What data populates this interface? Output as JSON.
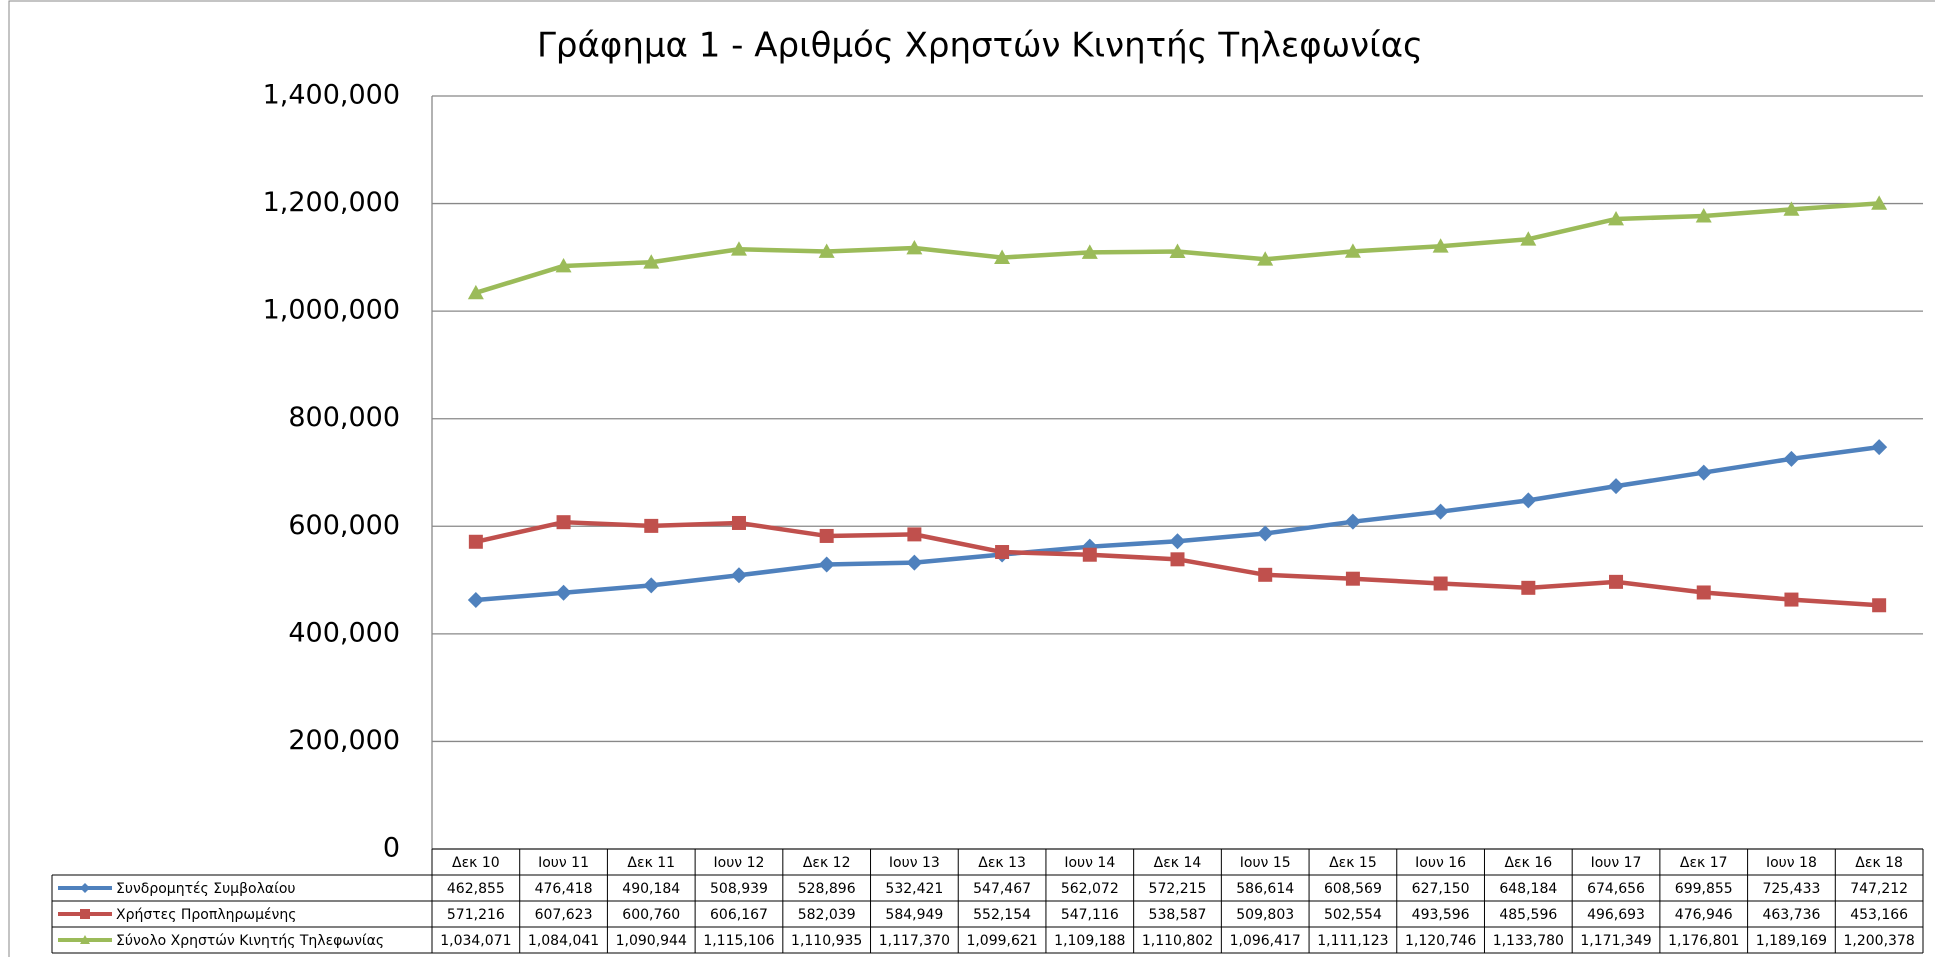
{
  "chart_data": {
    "type": "line",
    "title": "Γράφημα 1 - Αριθμός Χρηστών Κινητής Τηλεφωνίας",
    "categories": [
      "Δεκ 10",
      "Ιουν 11",
      "Δεκ 11",
      "Ιουν 12",
      "Δεκ 12",
      "Ιουν 13",
      "Δεκ 13",
      "Ιουν 14",
      "Δεκ 14",
      "Ιουν 15",
      "Δεκ 15",
      "Ιουν 16",
      "Δεκ 16",
      "Ιουν 17",
      "Δεκ 17",
      "Ιουν 18",
      "Δεκ 18"
    ],
    "series": [
      {
        "name": "Συνδρομητές Συμβολαίου",
        "color": "#4f81bd",
        "marker": "diamond",
        "values": [
          462855,
          476418,
          490184,
          508939,
          528896,
          532421,
          547467,
          562072,
          572215,
          586614,
          608569,
          627150,
          648184,
          674656,
          699855,
          725433,
          747212
        ],
        "value_labels": [
          "462,855",
          "476,418",
          "490,184",
          "508,939",
          "528,896",
          "532,421",
          "547,467",
          "562,072",
          "572,215",
          "586,614",
          "608,569",
          "627,150",
          "648,184",
          "674,656",
          "699,855",
          "725,433",
          "747,212"
        ]
      },
      {
        "name": "Χρήστες Προπληρωμένης",
        "color": "#c0504d",
        "marker": "square",
        "values": [
          571216,
          607623,
          600760,
          606167,
          582039,
          584949,
          552154,
          547116,
          538587,
          509803,
          502554,
          493596,
          485596,
          496693,
          476946,
          463736,
          453166
        ],
        "value_labels": [
          "571,216",
          "607,623",
          "600,760",
          "606,167",
          "582,039",
          "584,949",
          "552,154",
          "547,116",
          "538,587",
          "509,803",
          "502,554",
          "493,596",
          "485,596",
          "496,693",
          "476,946",
          "463,736",
          "453,166"
        ]
      },
      {
        "name": "Σύνολο Χρηστών Κινητής Τηλεφωνίας",
        "color": "#9bbb59",
        "marker": "triangle",
        "values": [
          1034071,
          1084041,
          1090944,
          1115106,
          1110935,
          1117370,
          1099621,
          1109188,
          1110802,
          1096417,
          1111123,
          1120746,
          1133780,
          1171349,
          1176801,
          1189169,
          1200378
        ],
        "value_labels": [
          "1,034,071",
          "1,084,041",
          "1,090,944",
          "1,115,106",
          "1,110,935",
          "1,117,370",
          "1,099,621",
          "1,109,188",
          "1,110,802",
          "1,096,417",
          "1,111,123",
          "1,120,746",
          "1,133,780",
          "1,171,349",
          "1,176,801",
          "1,189,169",
          "1,200,378"
        ]
      }
    ],
    "ylim": [
      0,
      1400000
    ],
    "yticks": [
      0,
      {
        "value": 200000,
        "label": "200,000"
      },
      {
        "value": 400000,
        "label": "400,000"
      },
      {
        "value": 600000,
        "label": "600,000"
      },
      {
        "value": 800000,
        "label": "800,000"
      },
      {
        "value": 1000000,
        "label": "1,000,000"
      },
      {
        "value": 1200000,
        "label": "1,200,000"
      },
      {
        "value": 1400000,
        "label": "1,400,000"
      }
    ],
    "grid": true
  }
}
